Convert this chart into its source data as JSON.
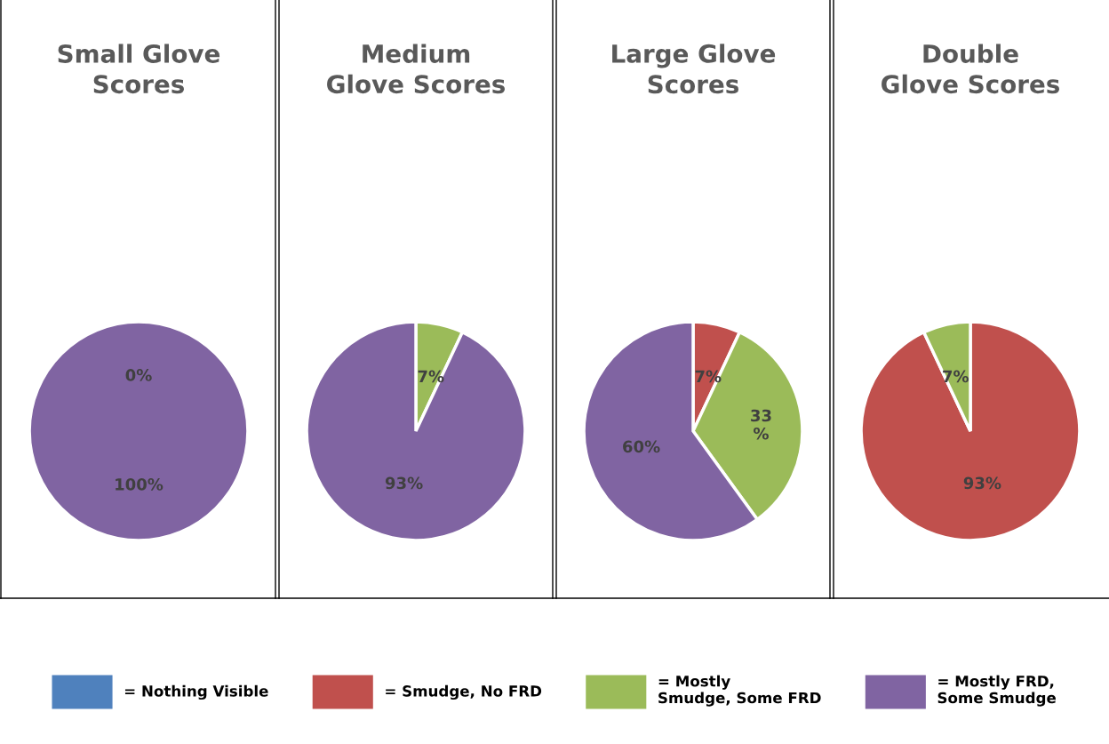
{
  "chart_data": [
    {
      "type": "pie",
      "title": "Small Glove Scores",
      "categories": [
        "= Nothing Visible",
        "= Smudge, No FRD",
        "= Mostly Smudge, Some FRD",
        "= Mostly FRD, Some Smudge"
      ],
      "colors": [
        "#4f81bd",
        "#c0504d",
        "#9bbb59",
        "#8064a2"
      ],
      "values": [
        null,
        null,
        0,
        100
      ],
      "value_labels": [
        null,
        null,
        "0%",
        "100%"
      ],
      "legend": "bottom"
    },
    {
      "type": "pie",
      "title": "Medium Glove Scores",
      "categories": [
        null,
        null,
        null,
        null
      ],
      "colors": [
        "#4f81bd",
        "#c0504d",
        "#9bbb59",
        "#8064a2"
      ],
      "values": [
        null,
        null,
        7,
        93
      ],
      "value_labels": [
        null,
        null,
        "7%",
        "93%"
      ]
    },
    {
      "type": "pie",
      "title": "Large Glove Scores",
      "categories": [
        null,
        null,
        null,
        null
      ],
      "colors": [
        "#4f81bd",
        "#c0504d",
        "#9bbb59",
        "#8064a2"
      ],
      "values": [
        null,
        7,
        33,
        60
      ],
      "value_labels": [
        null,
        "7%",
        "33 %",
        "60%"
      ]
    },
    {
      "type": "pie",
      "title": "Double Glove Scores",
      "categories": [
        null,
        null,
        null,
        null
      ],
      "colors": [
        "#4f81bd",
        "#c0504d",
        "#9bbb59",
        "#8064a2"
      ],
      "values": [
        null,
        93,
        7,
        null
      ],
      "value_labels": [
        null,
        "93%",
        "7%",
        null
      ]
    }
  ]
}
